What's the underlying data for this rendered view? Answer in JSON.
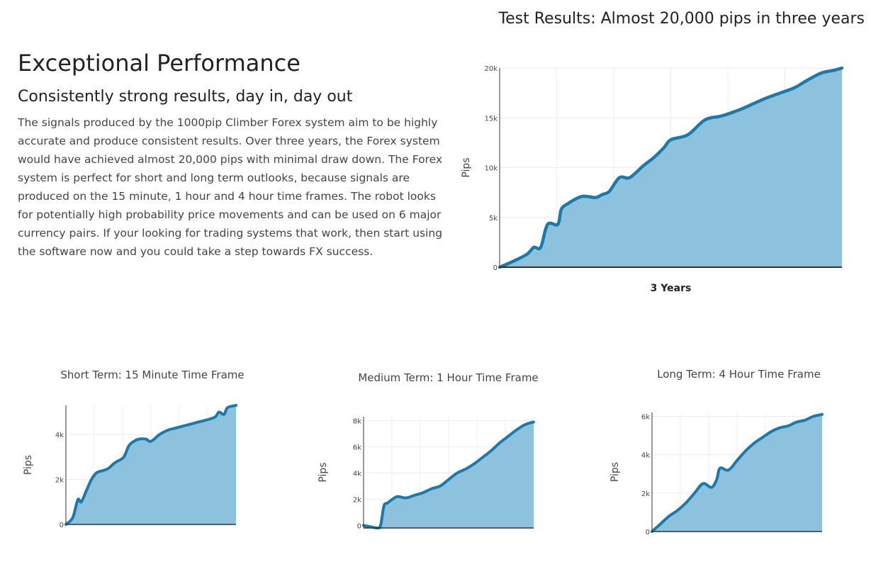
{
  "intro": {
    "heading": "Exceptional Performance",
    "subheading": "Consistently strong results, day in, day out",
    "body": "The signals produced by the 1000pip Climber Forex system aim to be highly accurate and produce consistent results. Over three years, the Forex system would have achieved almost 20,000 pips with minimal draw down. The Forex system is perfect for short and long term outlooks, because signals are produced on the 15 minute, 1 hour and 4 hour time frames. The robot looks for potentially high probability price movements and can be used on 6 major currency pairs. If your looking for trading systems that work, then start using the software now and you could take a step towards FX success."
  },
  "colors": {
    "line": "#1a7aab",
    "fill": "#8cc2dd",
    "grid": "#ececec",
    "axis": "#333333"
  },
  "chart_data": [
    {
      "type": "area",
      "title": "Test Results: Almost 20,000 pips in three years",
      "xlabel": "3 Years",
      "ylabel": "Pips",
      "ylim": [
        0,
        20000
      ],
      "yticks": [
        0,
        5000,
        10000,
        15000,
        20000
      ],
      "ytick_labels": [
        "0",
        "5k",
        "10k",
        "15k",
        "20k"
      ],
      "x": [
        0,
        0.04,
        0.08,
        0.1,
        0.12,
        0.14,
        0.17,
        0.18,
        0.2,
        0.24,
        0.28,
        0.3,
        0.32,
        0.35,
        0.38,
        0.42,
        0.45,
        0.48,
        0.5,
        0.55,
        0.6,
        0.65,
        0.7,
        0.74,
        0.78,
        0.82,
        0.86,
        0.9,
        0.94,
        0.98,
        1.0
      ],
      "values": [
        0,
        600,
        1300,
        2000,
        2000,
        4300,
        4300,
        5800,
        6400,
        7100,
        7000,
        7300,
        7600,
        9000,
        9000,
        10200,
        11000,
        12000,
        12800,
        13300,
        14800,
        15200,
        15800,
        16400,
        17000,
        17500,
        18000,
        18800,
        19500,
        19800,
        20000
      ]
    },
    {
      "type": "area",
      "title": "Short Term: 15 Minute Time Frame",
      "ylabel": "Pips",
      "ylim": [
        0,
        5300
      ],
      "yticks": [
        0,
        2000,
        4000
      ],
      "ytick_labels": [
        "0",
        "2k",
        "4k"
      ],
      "x": [
        0,
        0.04,
        0.07,
        0.09,
        0.12,
        0.15,
        0.18,
        0.22,
        0.25,
        0.28,
        0.3,
        0.34,
        0.37,
        0.4,
        0.43,
        0.47,
        0.5,
        0.55,
        0.6,
        0.65,
        0.7,
        0.75,
        0.8,
        0.85,
        0.88,
        0.9,
        0.93,
        0.95,
        1.0
      ],
      "values": [
        0,
        300,
        1100,
        1000,
        1500,
        2000,
        2300,
        2400,
        2500,
        2700,
        2800,
        3000,
        3500,
        3700,
        3800,
        3800,
        3700,
        4000,
        4200,
        4300,
        4400,
        4500,
        4600,
        4700,
        4800,
        5000,
        4900,
        5200,
        5300
      ]
    },
    {
      "type": "area",
      "title": "Medium Term: 1 Hour Time Frame",
      "ylabel": "Pips",
      "ylim": [
        -200,
        8300
      ],
      "yticks": [
        0,
        2000,
        4000,
        6000,
        8000
      ],
      "ytick_labels": [
        "0",
        "2k",
        "4k",
        "6k",
        "8k"
      ],
      "x": [
        0,
        0.04,
        0.08,
        0.1,
        0.12,
        0.14,
        0.17,
        0.2,
        0.25,
        0.3,
        0.35,
        0.4,
        0.45,
        0.5,
        0.55,
        0.6,
        0.65,
        0.7,
        0.75,
        0.8,
        0.85,
        0.9,
        0.95,
        1.0
      ],
      "values": [
        0,
        -100,
        -200,
        0,
        1500,
        1700,
        2000,
        2200,
        2100,
        2300,
        2500,
        2800,
        3000,
        3500,
        4000,
        4300,
        4700,
        5200,
        5700,
        6300,
        6800,
        7300,
        7700,
        7900
      ]
    },
    {
      "type": "area",
      "title": "Long Term: 4 Hour Time Frame",
      "ylabel": "Pips",
      "ylim": [
        0,
        6200
      ],
      "yticks": [
        0,
        2000,
        4000,
        6000
      ],
      "ytick_labels": [
        "0",
        "2k",
        "4k",
        "6k"
      ],
      "x": [
        0,
        0.05,
        0.1,
        0.15,
        0.2,
        0.25,
        0.3,
        0.35,
        0.38,
        0.4,
        0.45,
        0.5,
        0.55,
        0.6,
        0.65,
        0.7,
        0.75,
        0.8,
        0.85,
        0.9,
        0.95,
        1.0
      ],
      "values": [
        0,
        400,
        800,
        1100,
        1500,
        2000,
        2500,
        2300,
        2700,
        3300,
        3200,
        3700,
        4200,
        4600,
        4900,
        5200,
        5400,
        5500,
        5700,
        5800,
        6000,
        6100
      ]
    }
  ]
}
